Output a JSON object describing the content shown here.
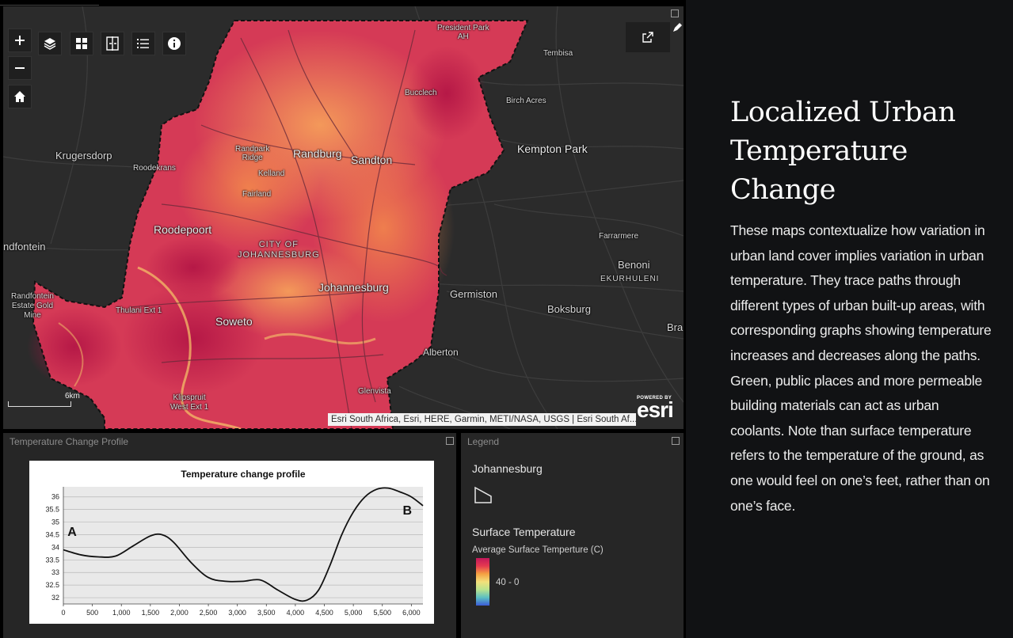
{
  "map": {
    "labels": {
      "president_park": "President Park\nAH",
      "tembisa": "Tembisa",
      "bucclech": "Bucclech",
      "birch_acres": "Birch Acres",
      "kempton_park": "Kempton Park",
      "krugersdorp": "Krugersdorp",
      "roodekrans": "Roodekrans",
      "randpark_ridge": "Randpark\nRidge",
      "randburg": "Randburg",
      "sandton": "Sandton",
      "kelland": "Kelland",
      "fairland": "Fairland",
      "roodepoort": "Roodepoort",
      "city_of_johannesburg": "CITY OF\nJOHANNESBURG",
      "farrarmere": "Farrarmere",
      "benoni": "Benoni",
      "ekurhuleni": "EKURHULENI",
      "randfontein": "ndfontein",
      "randfontein_estate": "Randfontein\nEstate Gold\nMine",
      "thulani": "Thulani Ext 1",
      "johannesburg": "Johannesburg",
      "germiston": "Germiston",
      "boksburg": "Boksburg",
      "bra": "Bra",
      "soweto": "Soweto",
      "alberton": "Alberton",
      "glenvista": "Glenvista",
      "klipspruit": "Klipspruit\nWest Ext 1"
    },
    "scale_label": "6km",
    "attribution": "Esri South Africa, Esri, HERE, Garmin, METI/NASA, USGS | Esri South Af...",
    "esri_powered": "POWERED BY",
    "esri_logo": "esri",
    "tools": [
      "zoom-in",
      "zoom-out",
      "home",
      "layers",
      "basemap-gallery",
      "swipe",
      "legend-list",
      "info"
    ]
  },
  "chart_panel": {
    "header": "Temperature Change Profile"
  },
  "chart_data": {
    "type": "line",
    "title": "Temperature change profile",
    "xlabel": "",
    "ylabel": "",
    "xlim": [
      0,
      6200
    ],
    "ylim": [
      31.75,
      36.4
    ],
    "xticks": [
      0,
      500,
      1000,
      1500,
      2000,
      2500,
      3000,
      3500,
      4000,
      4500,
      5000,
      5500,
      6000
    ],
    "xtick_labels": [
      "0",
      "500",
      "1,000",
      "1,500",
      "2,000",
      "2,500",
      "3,000",
      "3,500",
      "4,000",
      "4,500",
      "5,000",
      "5,500",
      "6,000"
    ],
    "yticks": [
      32,
      32.5,
      33,
      33.5,
      34,
      34.5,
      35,
      35.5,
      36
    ],
    "ytick_labels": [
      "32",
      "32.5",
      "33",
      "33.5",
      "34",
      "34.5",
      "35",
      "35.5",
      "36"
    ],
    "grid": true,
    "annotations": [
      {
        "text": "A",
        "x": 150,
        "y": 34.45
      },
      {
        "text": "B",
        "x": 5930,
        "y": 35.3
      }
    ],
    "series": [
      {
        "x": [
          0,
          300,
          600,
          900,
          1200,
          1500,
          1700,
          1900,
          2200,
          2500,
          2800,
          3100,
          3400,
          3700,
          4000,
          4200,
          4400,
          4600,
          4800,
          5000,
          5200,
          5400,
          5600,
          5800,
          6000,
          6200
        ],
        "values": [
          33.9,
          33.7,
          33.62,
          33.65,
          34.05,
          34.45,
          34.5,
          34.2,
          33.4,
          32.8,
          32.65,
          32.65,
          32.7,
          32.3,
          31.93,
          31.9,
          32.3,
          33.3,
          34.5,
          35.4,
          36.0,
          36.3,
          36.35,
          36.2,
          36.0,
          35.65
        ]
      }
    ]
  },
  "legend": {
    "header": "Legend",
    "layer_name": "Johannesburg",
    "section_title": "Surface Temperature",
    "field_label": "Average Surface Temperture (C)",
    "range_label": "40 - 0",
    "ramp_colors": [
      "#c2185b",
      "#e53950",
      "#f5a142",
      "#f3e07a",
      "#b9e38e",
      "#5bbfc2",
      "#3b5bd8"
    ]
  },
  "story": {
    "title": "Localized Urban Temperature Change",
    "body": "These maps contextualize how variation in urban land cover implies variation in urban temperature. They trace paths through different types of urban built-up areas, with corresponding graphs showing temperature increases and decreases along the paths. Green, public places and more permeable building materials can act as urban coolants. Note than surface temperature refers to the temperature of the ground, as one would feel on one’s feet, rather than on one’s face."
  }
}
